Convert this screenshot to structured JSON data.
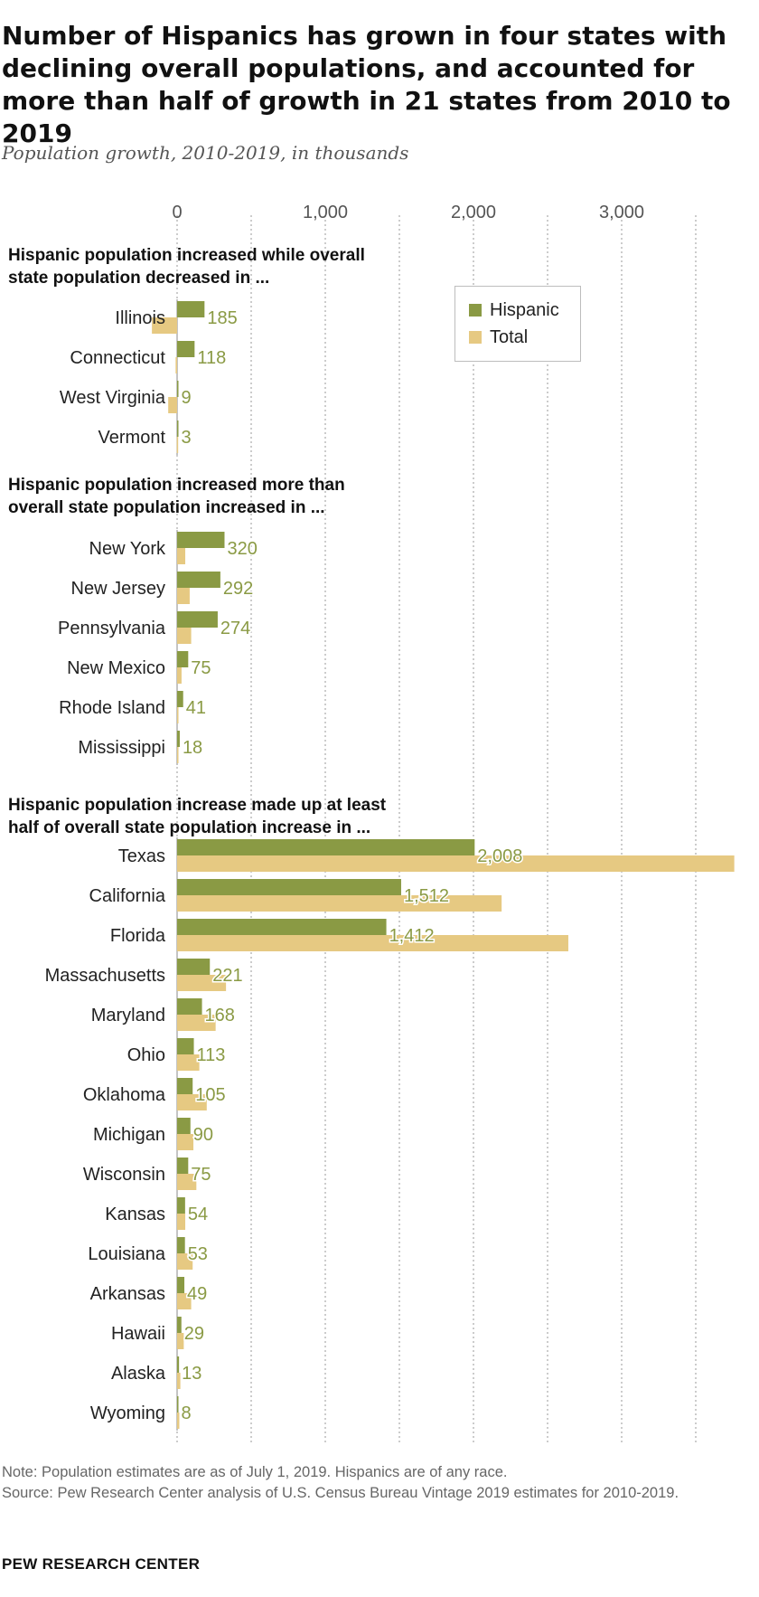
{
  "title": "Number of Hispanics has grown in four states with declining overall populations, and accounted for more than half of growth in 21 states from 2010 to 2019",
  "subtitle": "Population growth, 2010-2019, in thousands",
  "note": "Note: Population estimates are as of July 1, 2019. Hispanics are of any race.",
  "source": "Source: Pew Research Center analysis of U.S. Census Bureau Vintage 2019 estimates for 2010-2019.",
  "footer": "PEW RESEARCH CENTER",
  "colors": {
    "hispanic": "#8a9a44",
    "total": "#e6c982",
    "value_label": "#8a9a44",
    "grid": "#999999"
  },
  "legend": {
    "hispanic": "Hispanic",
    "total": "Total"
  },
  "chart_data": {
    "type": "bar",
    "orientation": "horizontal",
    "xlim": [
      0,
      3800
    ],
    "x_ticks": [
      0,
      1000,
      2000,
      3000
    ],
    "x_tick_labels": [
      "0",
      "1,000",
      "2,000",
      "3,000"
    ],
    "grid": true,
    "legend_position": "top-right",
    "series_names": [
      "Hispanic",
      "Total"
    ],
    "groups": [
      {
        "heading": "Hispanic population increased while overall state population decreased in ...",
        "rows": [
          {
            "state": "Illinois",
            "hispanic": 185,
            "hispanic_label": "185",
            "total": -170
          },
          {
            "state": "Connecticut",
            "hispanic": 118,
            "hispanic_label": "118",
            "total": -10
          },
          {
            "state": "West Virginia",
            "hispanic": 9,
            "hispanic_label": "9",
            "total": -60
          },
          {
            "state": "Vermont",
            "hispanic": 3,
            "hispanic_label": "3",
            "total": -2
          }
        ]
      },
      {
        "heading": "Hispanic population increased more than overall state population increased in ...",
        "rows": [
          {
            "state": "New York",
            "hispanic": 320,
            "hispanic_label": "320",
            "total": 55
          },
          {
            "state": "New Jersey",
            "hispanic": 292,
            "hispanic_label": "292",
            "total": 85
          },
          {
            "state": "Pennsylvania",
            "hispanic": 274,
            "hispanic_label": "274",
            "total": 95
          },
          {
            "state": "New Mexico",
            "hispanic": 75,
            "hispanic_label": "75",
            "total": 30
          },
          {
            "state": "Rhode Island",
            "hispanic": 41,
            "hispanic_label": "41",
            "total": 7
          },
          {
            "state": "Mississippi",
            "hispanic": 18,
            "hispanic_label": "18",
            "total": 9
          }
        ]
      },
      {
        "heading": "Hispanic population increase made up at least half of overall state population increase in ...",
        "rows": [
          {
            "state": "Texas",
            "hispanic": 2008,
            "hispanic_label": "2,008",
            "total": 3760
          },
          {
            "state": "California",
            "hispanic": 1512,
            "hispanic_label": "1,512",
            "total": 2190
          },
          {
            "state": "Florida",
            "hispanic": 1412,
            "hispanic_label": "1,412",
            "total": 2640
          },
          {
            "state": "Massachusetts",
            "hispanic": 221,
            "hispanic_label": "221",
            "total": 330
          },
          {
            "state": "Maryland",
            "hispanic": 168,
            "hispanic_label": "168",
            "total": 260
          },
          {
            "state": "Ohio",
            "hispanic": 113,
            "hispanic_label": "113",
            "total": 150
          },
          {
            "state": "Oklahoma",
            "hispanic": 105,
            "hispanic_label": "105",
            "total": 200
          },
          {
            "state": "Michigan",
            "hispanic": 90,
            "hispanic_label": "90",
            "total": 110
          },
          {
            "state": "Wisconsin",
            "hispanic": 75,
            "hispanic_label": "75",
            "total": 130
          },
          {
            "state": "Kansas",
            "hispanic": 54,
            "hispanic_label": "54",
            "total": 55
          },
          {
            "state": "Louisiana",
            "hispanic": 53,
            "hispanic_label": "53",
            "total": 105
          },
          {
            "state": "Arkansas",
            "hispanic": 49,
            "hispanic_label": "49",
            "total": 95
          },
          {
            "state": "Hawaii",
            "hispanic": 29,
            "hispanic_label": "29",
            "total": 45
          },
          {
            "state": "Alaska",
            "hispanic": 13,
            "hispanic_label": "13",
            "total": 22
          },
          {
            "state": "Wyoming",
            "hispanic": 8,
            "hispanic_label": "8",
            "total": 15
          }
        ]
      }
    ]
  }
}
